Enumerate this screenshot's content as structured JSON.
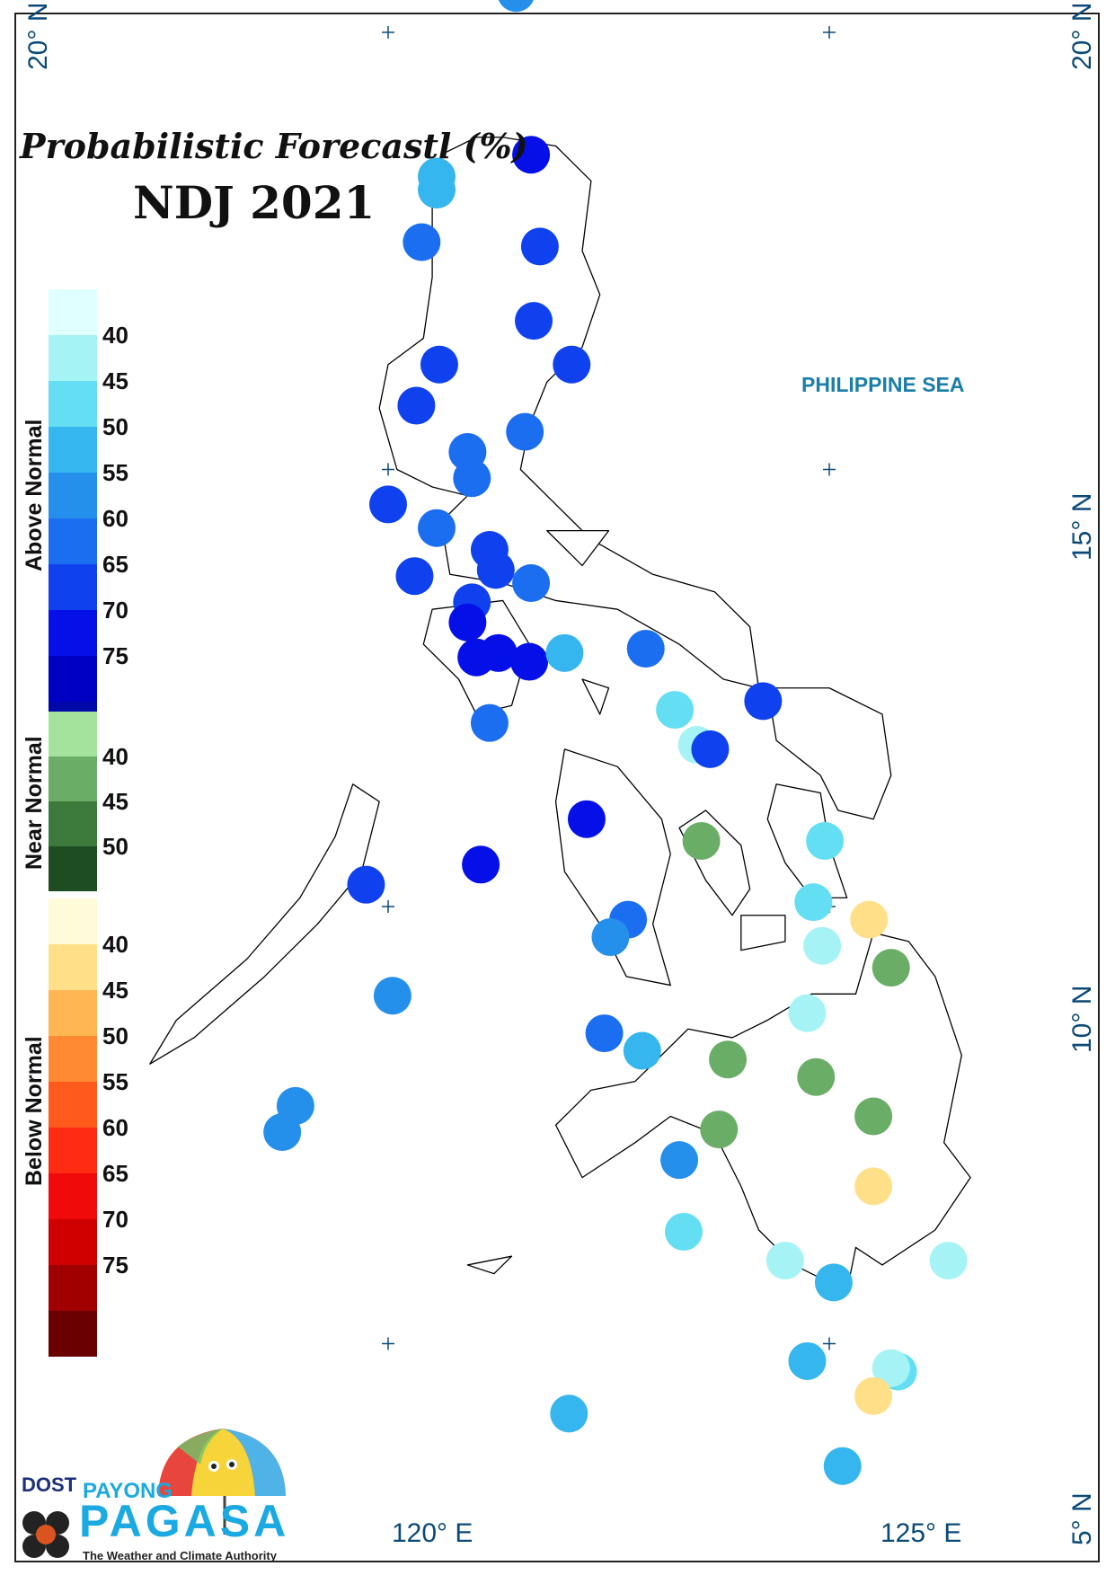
{
  "title": "Probabilistic Forecastl (%)",
  "period": "NDJ 2021",
  "sea_label": "PHILIPPINE SEA",
  "grid_labels": {
    "lat_20_left": "20° N",
    "lat_20_right": "20° N",
    "lat_15": "15° N",
    "lat_10": "10° N",
    "lat_5": "5° N",
    "lon_120": "120° E",
    "lon_125": "125° E"
  },
  "legend": {
    "above": {
      "label": "Above Normal",
      "ticks": [
        "40",
        "45",
        "50",
        "55",
        "60",
        "65",
        "70",
        "75"
      ],
      "colors": [
        "#e0ffff",
        "#a6f3f5",
        "#63def2",
        "#36b6ee",
        "#2490ec",
        "#1c6ef0",
        "#0f42ee",
        "#0510e8",
        "#0000c4",
        "#0008a8"
      ]
    },
    "near": {
      "label": "Near Normal",
      "ticks": [
        "40",
        "45",
        "50"
      ],
      "colors": [
        "#a3e39b",
        "#6aad66",
        "#3c7a3c",
        "#1f4d22"
      ]
    },
    "below": {
      "label": "Below Normal",
      "ticks": [
        "40",
        "45",
        "50",
        "55",
        "60",
        "65",
        "70",
        "75"
      ],
      "colors": [
        "#fffbd8",
        "#ffe089",
        "#ffb653",
        "#ff8a33",
        "#ff5a1c",
        "#ff2b12",
        "#f00a0a",
        "#d00000",
        "#a00000",
        "#6a0000"
      ]
    }
  },
  "logo": {
    "dost": "DOST",
    "payong": "PAYONG",
    "pagasa": "PAGASA",
    "tagline": "The Weather and Climate Authority"
  },
  "stations": [
    {
      "lon": 121.45,
      "lat": 20.45,
      "category": "above",
      "prob": 55
    },
    {
      "lon": 121.62,
      "lat": 18.6,
      "category": "above",
      "prob": 70
    },
    {
      "lon": 120.55,
      "lat": 18.35,
      "category": "above",
      "prob": 50
    },
    {
      "lon": 120.55,
      "lat": 18.2,
      "category": "above",
      "prob": 50
    },
    {
      "lon": 120.38,
      "lat": 17.6,
      "category": "above",
      "prob": 60
    },
    {
      "lon": 121.72,
      "lat": 17.55,
      "category": "above",
      "prob": 65
    },
    {
      "lon": 121.65,
      "lat": 16.7,
      "category": "above",
      "prob": 65
    },
    {
      "lon": 120.58,
      "lat": 16.2,
      "category": "above",
      "prob": 65
    },
    {
      "lon": 122.08,
      "lat": 16.2,
      "category": "above",
      "prob": 65
    },
    {
      "lon": 120.32,
      "lat": 15.73,
      "category": "above",
      "prob": 65
    },
    {
      "lon": 121.55,
      "lat": 15.43,
      "category": "above",
      "prob": 60
    },
    {
      "lon": 120.9,
      "lat": 15.2,
      "category": "above",
      "prob": 60
    },
    {
      "lon": 120.95,
      "lat": 14.9,
      "category": "above",
      "prob": 60
    },
    {
      "lon": 120.0,
      "lat": 14.6,
      "category": "above",
      "prob": 65
    },
    {
      "lon": 120.55,
      "lat": 14.33,
      "category": "above",
      "prob": 60
    },
    {
      "lon": 121.15,
      "lat": 14.08,
      "category": "above",
      "prob": 65
    },
    {
      "lon": 121.22,
      "lat": 13.85,
      "category": "above",
      "prob": 65
    },
    {
      "lon": 120.3,
      "lat": 13.78,
      "category": "above",
      "prob": 65
    },
    {
      "lon": 121.62,
      "lat": 13.7,
      "category": "above",
      "prob": 60
    },
    {
      "lon": 120.95,
      "lat": 13.48,
      "category": "above",
      "prob": 65
    },
    {
      "lon": 120.9,
      "lat": 13.25,
      "category": "above",
      "prob": 70
    },
    {
      "lon": 121.0,
      "lat": 12.85,
      "category": "above",
      "prob": 70
    },
    {
      "lon": 121.25,
      "lat": 12.9,
      "category": "above",
      "prob": 70
    },
    {
      "lon": 121.6,
      "lat": 12.8,
      "category": "above",
      "prob": 70
    },
    {
      "lon": 122.0,
      "lat": 12.9,
      "category": "above",
      "prob": 50
    },
    {
      "lon": 122.92,
      "lat": 12.95,
      "category": "above",
      "prob": 60
    },
    {
      "lon": 124.25,
      "lat": 12.35,
      "category": "above",
      "prob": 65
    },
    {
      "lon": 121.15,
      "lat": 12.1,
      "category": "above",
      "prob": 60
    },
    {
      "lon": 123.25,
      "lat": 12.25,
      "category": "above",
      "prob": 45
    },
    {
      "lon": 123.5,
      "lat": 11.85,
      "category": "above",
      "prob": 40
    },
    {
      "lon": 123.65,
      "lat": 11.8,
      "category": "above",
      "prob": 65
    },
    {
      "lon": 122.25,
      "lat": 11.0,
      "category": "above",
      "prob": 70
    },
    {
      "lon": 121.05,
      "lat": 10.48,
      "category": "above",
      "prob": 70
    },
    {
      "lon": 123.55,
      "lat": 10.75,
      "category": "near",
      "prob": 40
    },
    {
      "lon": 124.95,
      "lat": 10.75,
      "category": "above",
      "prob": 45
    },
    {
      "lon": 119.75,
      "lat": 10.25,
      "category": "above",
      "prob": 65
    },
    {
      "lon": 124.82,
      "lat": 10.05,
      "category": "above",
      "prob": 45
    },
    {
      "lon": 125.45,
      "lat": 9.85,
      "category": "below",
      "prob": 40
    },
    {
      "lon": 122.72,
      "lat": 9.85,
      "category": "above",
      "prob": 60
    },
    {
      "lon": 122.52,
      "lat": 9.65,
      "category": "above",
      "prob": 55
    },
    {
      "lon": 124.92,
      "lat": 9.55,
      "category": "above",
      "prob": 40
    },
    {
      "lon": 125.7,
      "lat": 9.3,
      "category": "near",
      "prob": 40
    },
    {
      "lon": 120.05,
      "lat": 8.98,
      "category": "above",
      "prob": 55
    },
    {
      "lon": 124.75,
      "lat": 8.78,
      "category": "above",
      "prob": 40
    },
    {
      "lon": 122.45,
      "lat": 8.55,
      "category": "above",
      "prob": 60
    },
    {
      "lon": 122.88,
      "lat": 8.35,
      "category": "above",
      "prob": 50
    },
    {
      "lon": 123.85,
      "lat": 8.25,
      "category": "near",
      "prob": 40
    },
    {
      "lon": 124.85,
      "lat": 8.05,
      "category": "near",
      "prob": 40
    },
    {
      "lon": 118.95,
      "lat": 7.72,
      "category": "above",
      "prob": 55
    },
    {
      "lon": 118.8,
      "lat": 7.42,
      "category": "above",
      "prob": 55
    },
    {
      "lon": 123.75,
      "lat": 7.45,
      "category": "near",
      "prob": 40
    },
    {
      "lon": 125.5,
      "lat": 7.6,
      "category": "near",
      "prob": 40
    },
    {
      "lon": 123.3,
      "lat": 7.1,
      "category": "above",
      "prob": 55
    },
    {
      "lon": 125.5,
      "lat": 6.8,
      "category": "below",
      "prob": 40
    },
    {
      "lon": 123.35,
      "lat": 6.28,
      "category": "above",
      "prob": 45
    },
    {
      "lon": 124.5,
      "lat": 5.95,
      "category": "above",
      "prob": 40
    },
    {
      "lon": 125.05,
      "lat": 5.7,
      "category": "above",
      "prob": 50
    },
    {
      "lon": 126.35,
      "lat": 5.95,
      "category": "above",
      "prob": 40
    },
    {
      "lon": 124.75,
      "lat": 4.8,
      "category": "above",
      "prob": 50
    },
    {
      "lon": 125.78,
      "lat": 4.68,
      "category": "above",
      "prob": 45
    },
    {
      "lon": 125.7,
      "lat": 4.72,
      "category": "above",
      "prob": 40
    },
    {
      "lon": 125.5,
      "lat": 4.4,
      "category": "below",
      "prob": 40
    },
    {
      "lon": 122.05,
      "lat": 4.2,
      "category": "above",
      "prob": 50
    },
    {
      "lon": 125.15,
      "lat": 3.6,
      "category": "above",
      "prob": 50
    }
  ]
}
